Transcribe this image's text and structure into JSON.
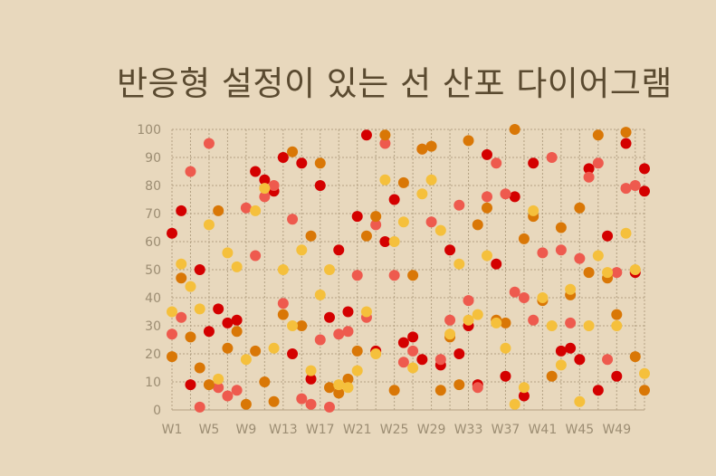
{
  "chart_data": {
    "type": "scatter",
    "title": "반응형 설정이 있는 선 산포 다이어그램",
    "xlabel": "",
    "ylabel": "",
    "x_categories": [
      "W1",
      "W2",
      "W3",
      "W4",
      "W5",
      "W6",
      "W7",
      "W8",
      "W9",
      "W10",
      "W11",
      "W12",
      "W13",
      "W14",
      "W15",
      "W16",
      "W17",
      "W18",
      "W19",
      "W20",
      "W21",
      "W22",
      "W23",
      "W24",
      "W25",
      "W26",
      "W27",
      "W28",
      "W29",
      "W30",
      "W31",
      "W32",
      "W33",
      "W34",
      "W35",
      "W36",
      "W37",
      "W38",
      "W39",
      "W40",
      "W41",
      "W42",
      "W43",
      "W44",
      "W45",
      "W46",
      "W47",
      "W48",
      "W49",
      "W50",
      "W51",
      "W52"
    ],
    "x_tick_labels": [
      "W1",
      "W5",
      "W9",
      "W13",
      "W17",
      "W21",
      "W25",
      "W29",
      "W33",
      "W37",
      "W41",
      "W45",
      "W49"
    ],
    "y_ticks": [
      0,
      10,
      20,
      30,
      40,
      50,
      60,
      70,
      80,
      90,
      100
    ],
    "ylim": [
      0,
      100
    ],
    "grid": true,
    "legend": "none",
    "series": [
      {
        "color": "#d40000",
        "points": [
          [
            "W1",
            63
          ],
          [
            "W2",
            71
          ],
          [
            "W3",
            9
          ],
          [
            "W4",
            50
          ],
          [
            "W5",
            28
          ],
          [
            "W6",
            36
          ],
          [
            "W7",
            31
          ],
          [
            "W8",
            32
          ],
          [
            "W10",
            85
          ],
          [
            "W11",
            82
          ],
          [
            "W12",
            78
          ],
          [
            "W13",
            90
          ],
          [
            "W14",
            20
          ],
          [
            "W15",
            88
          ],
          [
            "W16",
            11
          ],
          [
            "W17",
            80
          ],
          [
            "W18",
            33
          ],
          [
            "W19",
            57
          ],
          [
            "W20",
            35
          ],
          [
            "W21",
            69
          ],
          [
            "W22",
            98
          ],
          [
            "W23",
            21
          ],
          [
            "W24",
            60
          ],
          [
            "W25",
            75
          ],
          [
            "W26",
            24
          ],
          [
            "W27",
            26
          ],
          [
            "W28",
            18
          ],
          [
            "W30",
            16
          ],
          [
            "W31",
            57
          ],
          [
            "W32",
            20
          ],
          [
            "W33",
            30
          ],
          [
            "W34",
            9
          ],
          [
            "W35",
            91
          ],
          [
            "W36",
            52
          ],
          [
            "W37",
            12
          ],
          [
            "W38",
            76
          ],
          [
            "W39",
            5
          ],
          [
            "W40",
            88
          ],
          [
            "W43",
            21
          ],
          [
            "W44",
            22
          ],
          [
            "W45",
            18
          ],
          [
            "W46",
            86
          ],
          [
            "W47",
            7
          ],
          [
            "W48",
            62
          ],
          [
            "W49",
            12
          ],
          [
            "W50",
            95
          ],
          [
            "W51",
            49
          ],
          [
            "W52",
            86
          ],
          [
            "W52",
            78
          ]
        ]
      },
      {
        "color": "#ee5a4e",
        "points": [
          [
            "W1",
            27
          ],
          [
            "W2",
            33
          ],
          [
            "W3",
            85
          ],
          [
            "W4",
            1
          ],
          [
            "W5",
            95
          ],
          [
            "W6",
            8
          ],
          [
            "W7",
            5
          ],
          [
            "W8",
            7
          ],
          [
            "W9",
            72
          ],
          [
            "W10",
            55
          ],
          [
            "W11",
            76
          ],
          [
            "W12",
            80
          ],
          [
            "W13",
            38
          ],
          [
            "W14",
            68
          ],
          [
            "W15",
            4
          ],
          [
            "W16",
            2
          ],
          [
            "W17",
            25
          ],
          [
            "W18",
            1
          ],
          [
            "W19",
            27
          ],
          [
            "W20",
            28
          ],
          [
            "W21",
            48
          ],
          [
            "W22",
            33
          ],
          [
            "W23",
            66
          ],
          [
            "W24",
            95
          ],
          [
            "W25",
            48
          ],
          [
            "W26",
            17
          ],
          [
            "W27",
            21
          ],
          [
            "W28",
            93
          ],
          [
            "W29",
            67
          ],
          [
            "W30",
            18
          ],
          [
            "W31",
            32
          ],
          [
            "W32",
            73
          ],
          [
            "W33",
            39
          ],
          [
            "W34",
            8
          ],
          [
            "W35",
            76
          ],
          [
            "W36",
            88
          ],
          [
            "W37",
            77
          ],
          [
            "W38",
            42
          ],
          [
            "W39",
            40
          ],
          [
            "W40",
            32
          ],
          [
            "W41",
            56
          ],
          [
            "W42",
            90
          ],
          [
            "W43",
            57
          ],
          [
            "W44",
            31
          ],
          [
            "W45",
            54
          ],
          [
            "W46",
            83
          ],
          [
            "W47",
            88
          ],
          [
            "W48",
            18
          ],
          [
            "W49",
            49
          ],
          [
            "W50",
            79
          ],
          [
            "W51",
            80
          ]
        ]
      },
      {
        "color": "#d97706",
        "points": [
          [
            "W1",
            19
          ],
          [
            "W2",
            47
          ],
          [
            "W3",
            26
          ],
          [
            "W4",
            15
          ],
          [
            "W5",
            9
          ],
          [
            "W6",
            71
          ],
          [
            "W7",
            22
          ],
          [
            "W8",
            28
          ],
          [
            "W9",
            2
          ],
          [
            "W10",
            21
          ],
          [
            "W11",
            10
          ],
          [
            "W12",
            3
          ],
          [
            "W13",
            34
          ],
          [
            "W14",
            92
          ],
          [
            "W15",
            30
          ],
          [
            "W16",
            62
          ],
          [
            "W17",
            88
          ],
          [
            "W18",
            8
          ],
          [
            "W19",
            6
          ],
          [
            "W20",
            11
          ],
          [
            "W21",
            21
          ],
          [
            "W22",
            62
          ],
          [
            "W23",
            69
          ],
          [
            "W24",
            98
          ],
          [
            "W25",
            7
          ],
          [
            "W26",
            81
          ],
          [
            "W27",
            48
          ],
          [
            "W28",
            93
          ],
          [
            "W29",
            94
          ],
          [
            "W30",
            7
          ],
          [
            "W31",
            26
          ],
          [
            "W32",
            9
          ],
          [
            "W33",
            96
          ],
          [
            "W34",
            66
          ],
          [
            "W35",
            72
          ],
          [
            "W36",
            32
          ],
          [
            "W37",
            31
          ],
          [
            "W38",
            100
          ],
          [
            "W39",
            61
          ],
          [
            "W40",
            69
          ],
          [
            "W41",
            39
          ],
          [
            "W42",
            12
          ],
          [
            "W43",
            65
          ],
          [
            "W44",
            41
          ],
          [
            "W45",
            72
          ],
          [
            "W46",
            49
          ],
          [
            "W47",
            98
          ],
          [
            "W48",
            47
          ],
          [
            "W49",
            34
          ],
          [
            "W50",
            99
          ],
          [
            "W51",
            19
          ],
          [
            "W52",
            7
          ]
        ]
      },
      {
        "color": "#f5c03c",
        "points": [
          [
            "W1",
            35
          ],
          [
            "W2",
            52
          ],
          [
            "W3",
            44
          ],
          [
            "W4",
            36
          ],
          [
            "W5",
            66
          ],
          [
            "W6",
            11
          ],
          [
            "W7",
            56
          ],
          [
            "W8",
            51
          ],
          [
            "W9",
            18
          ],
          [
            "W10",
            71
          ],
          [
            "W11",
            79
          ],
          [
            "W12",
            22
          ],
          [
            "W13",
            50
          ],
          [
            "W14",
            30
          ],
          [
            "W15",
            57
          ],
          [
            "W16",
            14
          ],
          [
            "W17",
            41
          ],
          [
            "W18",
            50
          ],
          [
            "W19",
            9
          ],
          [
            "W20",
            8
          ],
          [
            "W21",
            14
          ],
          [
            "W22",
            35
          ],
          [
            "W23",
            20
          ],
          [
            "W24",
            82
          ],
          [
            "W25",
            60
          ],
          [
            "W26",
            67
          ],
          [
            "W27",
            15
          ],
          [
            "W28",
            77
          ],
          [
            "W29",
            82
          ],
          [
            "W30",
            64
          ],
          [
            "W31",
            27
          ],
          [
            "W32",
            52
          ],
          [
            "W33",
            32
          ],
          [
            "W34",
            34
          ],
          [
            "W35",
            55
          ],
          [
            "W36",
            31
          ],
          [
            "W37",
            22
          ],
          [
            "W38",
            2
          ],
          [
            "W39",
            8
          ],
          [
            "W40",
            71
          ],
          [
            "W41",
            40
          ],
          [
            "W42",
            30
          ],
          [
            "W43",
            16
          ],
          [
            "W44",
            43
          ],
          [
            "W45",
            3
          ],
          [
            "W46",
            30
          ],
          [
            "W47",
            55
          ],
          [
            "W48",
            49
          ],
          [
            "W49",
            30
          ],
          [
            "W50",
            63
          ],
          [
            "W51",
            50
          ],
          [
            "W52",
            13
          ]
        ]
      }
    ]
  }
}
